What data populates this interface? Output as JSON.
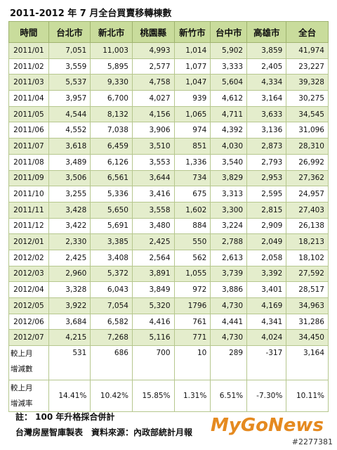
{
  "title": "2011-2012 年 7 月全台買賣移轉棟數",
  "table": {
    "headers": [
      "時間",
      "台北市",
      "新北市",
      "桃園縣",
      "新竹市",
      "台中市",
      "高雄市",
      "全台"
    ],
    "rows": [
      [
        "2011/01",
        "7,051",
        "11,003",
        "4,993",
        "1,014",
        "5,902",
        "3,859",
        "41,974"
      ],
      [
        "2011/02",
        "3,559",
        "5,895",
        "2,577",
        "1,077",
        "3,333",
        "2,405",
        "23,227"
      ],
      [
        "2011/03",
        "5,537",
        "9,330",
        "4,758",
        "1,047",
        "5,604",
        "4,334",
        "39,328"
      ],
      [
        "2011/04",
        "3,957",
        "6,700",
        "4,027",
        "939",
        "4,612",
        "3,164",
        "30,275"
      ],
      [
        "2011/05",
        "4,544",
        "8,132",
        "4,156",
        "1,065",
        "4,711",
        "3,633",
        "34,545"
      ],
      [
        "2011/06",
        "4,552",
        "7,038",
        "3,906",
        "974",
        "4,392",
        "3,136",
        "31,096"
      ],
      [
        "2011/07",
        "3,618",
        "6,459",
        "3,510",
        "851",
        "4,030",
        "2,873",
        "28,310"
      ],
      [
        "2011/08",
        "3,489",
        "6,126",
        "3,553",
        "1,336",
        "3,540",
        "2,793",
        "26,992"
      ],
      [
        "2011/09",
        "3,506",
        "6,561",
        "3,644",
        "734",
        "3,829",
        "2,953",
        "27,362"
      ],
      [
        "2011/10",
        "3,255",
        "5,336",
        "3,416",
        "675",
        "3,313",
        "2,595",
        "24,957"
      ],
      [
        "2011/11",
        "3,428",
        "5,650",
        "3,558",
        "1,602",
        "3,300",
        "2,815",
        "27,403"
      ],
      [
        "2011/12",
        "3,422",
        "5,691",
        "3,480",
        "884",
        "3,224",
        "2,909",
        "26,138"
      ],
      [
        "2012/01",
        "2,330",
        "3,385",
        "2,425",
        "550",
        "2,788",
        "2,049",
        "18,213"
      ],
      [
        "2012/02",
        "2,425",
        "3,408",
        "2,564",
        "562",
        "2,613",
        "2,058",
        "18,102"
      ],
      [
        "2012/03",
        "2,960",
        "5,372",
        "3,891",
        "1,055",
        "3,739",
        "3,392",
        "27,592"
      ],
      [
        "2012/04",
        "3,328",
        "6,043",
        "3,849",
        "972",
        "3,886",
        "3,401",
        "28,517"
      ],
      [
        "2012/05",
        "3,922",
        "7,054",
        "5,320",
        "1796",
        "4,730",
        "4,169",
        "34,963"
      ],
      [
        "2012/06",
        "3,684",
        "6,582",
        "4,416",
        "761",
        "4,441",
        "4,341",
        "31,286"
      ],
      [
        "2012/07",
        "4,215",
        "7,268",
        "5,116",
        "771",
        "4,730",
        "4,024",
        "34,450"
      ],
      [
        "較上月\n增減數",
        "531",
        "686",
        "700",
        "10",
        "289",
        "-317",
        "3,164"
      ],
      [
        "較上月\n增減率",
        "14.41%",
        "10.42%",
        "15.85%",
        "1.31%",
        "6.51%",
        "-7.30%",
        "10.11%"
      ]
    ]
  },
  "notes": [
    "註： 100 年升格採合併計",
    "台灣房屋智庫製表　資料來源：內政部統計月報"
  ],
  "watermark": {
    "brand": "MyGoNews",
    "id": "#2277381"
  }
}
